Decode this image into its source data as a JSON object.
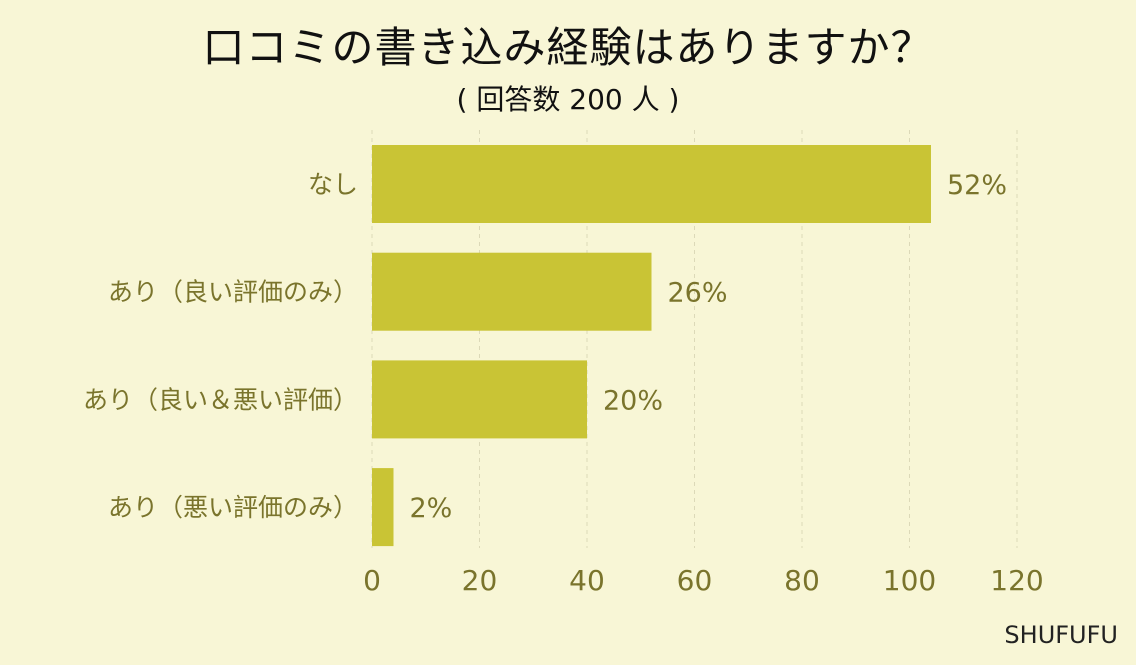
{
  "title": "口コミの書き込み経験はありますか？",
  "subtitle": "( 回答数 200 人 )",
  "footer": "SHUFUFU",
  "colors": {
    "background": "#f8f6d6",
    "bar": "#c9c435",
    "label": "#7a742c",
    "grid": "#dcd9b8"
  },
  "chart_data": {
    "type": "bar",
    "orientation": "horizontal",
    "categories": [
      "なし",
      "あり（良い評価のみ）",
      "あり（良い＆悪い評価）",
      "あり（悪い評価のみ）"
    ],
    "values": [
      104,
      52,
      40,
      4
    ],
    "data_labels": [
      "52%",
      "26%",
      "20%",
      "2%"
    ],
    "xlim": [
      0,
      120
    ],
    "xticks": [
      0,
      20,
      40,
      60,
      80,
      100,
      120
    ],
    "grid": "vertical-dashed",
    "legend": "none"
  }
}
